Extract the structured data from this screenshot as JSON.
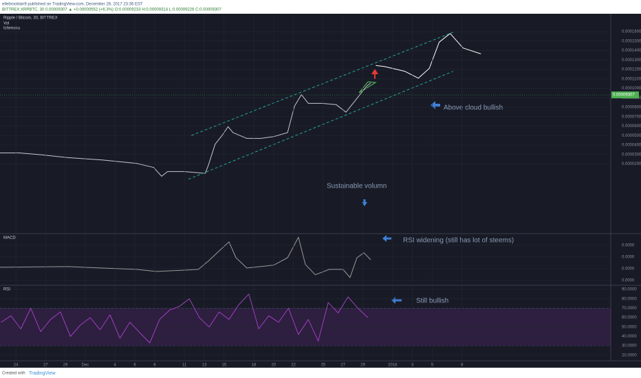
{
  "header": {
    "author_line": "ellebrooklan9 published on TradingView.com, December 28, 2017 23:36 EST",
    "symbol_line": "BITTREX:XRPBTC, 30  0.00009307 ▲ +0.00000552 (+6.3%) O:0.00009233 H:0.00009314 L:0.00009226 C:0.00009307"
  },
  "chart_data": [
    {
      "type": "line",
      "title": "Ripple / Bitcoin, 30, BITTREX",
      "indicators": [
        "Vol",
        "Ichimoku"
      ],
      "annotations": [
        "Above cloud bullish",
        "Sustainable volumn"
      ],
      "xlim": [
        -1.6,
        60
      ],
      "ylim": [
        -5.24e-05,
        0.0001775
      ],
      "grid": true,
      "yticks": [
        {
          "value": 2e-05,
          "label": "0.00002000"
        },
        {
          "value": 3e-05,
          "label": "0.00003000"
        },
        {
          "value": 4e-05,
          "label": "0.00004000"
        },
        {
          "value": 5e-05,
          "label": "0.00005000"
        },
        {
          "value": 6e-05,
          "label": "0.00006000"
        },
        {
          "value": 7e-05,
          "label": "0.00007000"
        },
        {
          "value": 8e-05,
          "label": "0.00008000"
        },
        {
          "value": 9e-05,
          "label": "0.00009000"
        },
        {
          "value": 0.0001,
          "label": "0.00010000"
        },
        {
          "value": 0.00011,
          "label": "0.00011000"
        },
        {
          "value": 0.00012,
          "label": "0.00012000"
        },
        {
          "value": 0.00013,
          "label": "0.00013000"
        },
        {
          "value": 0.00014,
          "label": "0.00014000"
        },
        {
          "value": 0.00015,
          "label": "0.00015000"
        },
        {
          "value": 0.00016,
          "label": "0.00016000"
        }
      ],
      "price_label": {
        "value": 9.307e-05,
        "label": "0.00009307"
      },
      "series": [
        {
          "color": "#c5c8ce",
          "x": [
            -1.6,
            0.35,
            2.4,
            5.2,
            8.7,
            12.2,
            13.9,
            14.7,
            15.3,
            17.0,
            19.1,
            19.4,
            20.1,
            20.8,
            21.4,
            21.9,
            23.3,
            24.7,
            26.0,
            27.4,
            28.1,
            28.8,
            29.5,
            30.9,
            32.3,
            33.3,
            34.0,
            34.7,
            35.4,
            35.8
          ],
          "values": [
            3.16e-05,
            3.16e-05,
            2.98e-05,
            2.67e-05,
            2.42e-05,
            2.05e-05,
            1.62e-05,
            6.9e-06,
            1.19e-05,
            1.19e-05,
            1e-05,
            1.8e-05,
            4.09e-05,
            5.01e-05,
            5.94e-05,
            5.32e-05,
            4.7e-05,
            4.7e-05,
            4.89e-05,
            5.32e-05,
            8.1e-05,
            9.33e-05,
            8.41e-05,
            8.41e-05,
            8.28e-05,
            7.48e-05,
            8.41e-05,
            9.33e-05,
            0.0001026,
            0.0001057
          ]
        },
        {
          "color": "#ffffff",
          "x": [
            36.3,
            37.2,
            39.2,
            40.6,
            41.7,
            42.7,
            43.8,
            45.1,
            46.9
          ],
          "values": [
            0.0001242,
            0.000123,
            0.0001181,
            0.0001107,
            0.0001211,
            0.0001489,
            0.0001581,
            0.0001427,
            0.0001365
          ]
        },
        {
          "color": "#26a69a",
          "dash": true,
          "x": [
            17.7,
            44.1
          ],
          "values": [
            5.01e-05,
            0.0001594
          ]
        },
        {
          "color": "#26a69a",
          "dash": true,
          "x": [
            17.4,
            44.1
          ],
          "values": [
            3.8e-06,
            0.000118
          ]
        }
      ]
    },
    {
      "type": "line",
      "title": "MACD",
      "annotations": [
        "RSI widening (still has lot of steems)"
      ],
      "xlim": [
        -1.6,
        60
      ],
      "ylim": [
        -6.2e-06,
        1.44e-05
      ],
      "grid": true,
      "yticks": [
        {
          "value": -5e-06,
          "label": "0.0000"
        },
        {
          "value": 0,
          "label": "0.0000"
        },
        {
          "value": 5e-06,
          "label": "0.0000"
        },
        {
          "value": 1e-05,
          "label": "0.0000"
        }
      ],
      "series": [
        {
          "color": "#9a9a9a",
          "x": [
            -1.6,
            5.2,
            12.2,
            14.2,
            18.4,
            19.4,
            20.5,
            21.5,
            22.2,
            23.3,
            26.0,
            27.4,
            28.5,
            29.2,
            30.2,
            31.6,
            33.0,
            33.7,
            34.4,
            35.1,
            35.8
          ],
          "values": [
            6e-07,
            9e-07,
            -3e-07,
            -1.2e-06,
            -3e-07,
            3.2e-06,
            7.6e-06,
            1.15e-05,
            4.7e-06,
            3e-07,
            1.5e-06,
            4.7e-06,
            1.35e-05,
            1.8e-06,
            -2.6e-06,
            -3e-07,
            -3e-07,
            -3.8e-06,
            4.7e-06,
            6.8e-06,
            3.8e-06
          ]
        }
      ]
    },
    {
      "type": "line",
      "title": "RSI",
      "annotations": [
        "Still bullish"
      ],
      "xlim": [
        -1.6,
        60
      ],
      "ylim": [
        14,
        93
      ],
      "grid": true,
      "band": [
        30,
        70
      ],
      "yticks": [
        {
          "value": 20,
          "label": "20.0000"
        },
        {
          "value": 30,
          "label": "30.0000"
        },
        {
          "value": 40,
          "label": "40.0000"
        },
        {
          "value": 50,
          "label": "50.0000"
        },
        {
          "value": 60,
          "label": "60.0000"
        },
        {
          "value": 70,
          "label": "70.0000"
        },
        {
          "value": 80,
          "label": "80.0000"
        },
        {
          "value": 90,
          "label": "90.0000"
        }
      ],
      "xticks": [
        {
          "value": 0,
          "label": "24"
        },
        {
          "value": 3,
          "label": "27"
        },
        {
          "value": 5,
          "label": "29"
        },
        {
          "value": 7,
          "label": "Dec"
        },
        {
          "value": 10,
          "label": "4"
        },
        {
          "value": 12,
          "label": "6"
        },
        {
          "value": 14,
          "label": "8"
        },
        {
          "value": 17,
          "label": "11"
        },
        {
          "value": 19,
          "label": "13"
        },
        {
          "value": 21,
          "label": "15"
        },
        {
          "value": 24,
          "label": "18"
        },
        {
          "value": 26,
          "label": "20"
        },
        {
          "value": 28,
          "label": "22"
        },
        {
          "value": 31,
          "label": "25"
        },
        {
          "value": 33,
          "label": "27"
        },
        {
          "value": 35,
          "label": "29"
        },
        {
          "value": 38,
          "label": "2018"
        },
        {
          "value": 40,
          "label": "3"
        },
        {
          "value": 42,
          "label": "5"
        },
        {
          "value": 45,
          "label": "8"
        }
      ],
      "series": [
        {
          "color": "#a040c0",
          "x": [
            -1.5,
            -0.5,
            0.5,
            1.5,
            2.5,
            3.5,
            4.5,
            5.5,
            6.5,
            7.5,
            8.5,
            9.5,
            10.5,
            11.5,
            12.5,
            13.5,
            14.5,
            15.5,
            16.5,
            17.5,
            18.5,
            19.5,
            20.5,
            21.5,
            22.5,
            23.5,
            24.5,
            25.5,
            26.5,
            27.5,
            28.5,
            29.5,
            30.5,
            31.5,
            32.5,
            33.5,
            34.5,
            35.5
          ],
          "values": [
            55,
            62,
            48,
            70,
            45,
            58,
            66,
            40,
            52,
            60,
            47,
            63,
            38,
            55,
            44,
            33,
            58,
            68,
            72,
            80,
            60,
            50,
            66,
            58,
            74,
            85,
            48,
            62,
            55,
            70,
            42,
            58,
            35,
            76,
            65,
            82,
            70,
            60
          ]
        }
      ]
    }
  ],
  "footer": {
    "created": "Created with",
    "brand": "TradingView"
  }
}
